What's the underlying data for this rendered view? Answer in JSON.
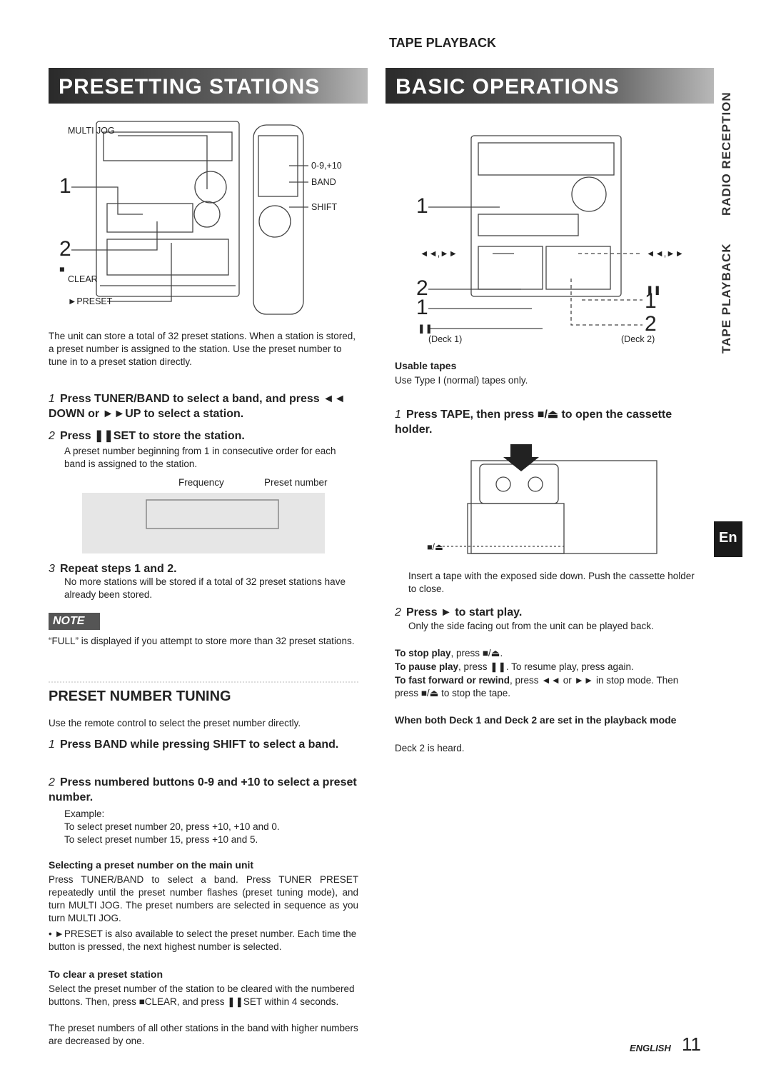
{
  "header": {
    "section": "TAPE PLAYBACK"
  },
  "side_tabs": {
    "radio": "RADIO RECEPTION",
    "tape": "TAPE PLAYBACK",
    "language": "En"
  },
  "left": {
    "banner": "PRESETTING STATIONS",
    "figure_labels": {
      "multi_jog": "MULTI JOG",
      "one": "1",
      "two": "2",
      "stop": "■",
      "clear": "CLEAR",
      "preset": "►PRESET",
      "numbers": "0-9,+10",
      "band": "BAND",
      "shift": "SHIFT"
    },
    "intro": "The unit can store a total of 32 preset stations. When a station is stored, a preset number is assigned to the station. Use the preset number to tune in to a preset station directly.",
    "steps": [
      {
        "number": "1",
        "title": "Press TUNER/BAND to select a band, and press ◄◄ DOWN or ►►UP to select a station."
      },
      {
        "number": "2",
        "title": "Press ❚❚SET to store the station.",
        "text": "A preset number beginning from 1 in consecutive order for each band is assigned to the station."
      },
      {
        "number": "3",
        "title": "Repeat steps 1 and 2.",
        "text": "No more stations will be stored if a total of 32 preset stations have already been stored."
      }
    ],
    "display_labels": {
      "frequency": "Frequency",
      "preset_number": "Preset number"
    },
    "note": {
      "label": "NOTE",
      "text": "“FULL” is displayed if you attempt to store more than 32 preset stations."
    },
    "tuning": {
      "heading": "PRESET NUMBER TUNING",
      "intro": "Use the remote control to select the preset number directly.",
      "steps": [
        {
          "number": "1",
          "title": "Press BAND while pressing SHIFT to select a band."
        },
        {
          "number": "2",
          "title": "Press numbered buttons 0-9 and +10 to select a preset number.",
          "lines": [
            "Example:",
            "To select preset number 20, press +10, +10 and 0.",
            "To select preset number 15, press +10 and 5."
          ]
        }
      ],
      "selecting": {
        "heading": "Selecting a preset number on the main unit",
        "text": "Press TUNER/BAND to select a band. Press TUNER PRESET repeatedly until the preset number flashes (preset tuning mode), and turn MULTI JOG. The preset numbers are selected in sequence as you turn MULTI JOG.",
        "bullet": "• ►PRESET is also available to select the preset number. Each time the button is pressed, the next highest number is selected."
      },
      "clear": {
        "heading": "To clear a preset station",
        "texts": [
          "Select the preset number of the station to be cleared with the numbered buttons. Then, press ■CLEAR, and press ❚❚SET within 4 seconds.",
          "The preset numbers of all other stations in the band with higher numbers are decreased by one."
        ]
      }
    }
  },
  "right": {
    "banner": "BASIC OPERATIONS",
    "figure_labels": {
      "one_top": "1",
      "skip_left": "◄◄,►►",
      "skip_right": "◄◄,►►",
      "two_left": "2",
      "pause_right": "❚❚",
      "one_left": "1",
      "one_right": "1",
      "pause_left": "❚❚",
      "two_right": "2",
      "deck1": "(Deck 1)",
      "deck2": "(Deck 2)"
    },
    "usable": {
      "heading": "Usable tapes",
      "text": "Use Type I (normal) tapes only."
    },
    "steps": [
      {
        "number": "1",
        "title": "Press TAPE, then press ■/⏏ to open the cassette holder.",
        "text": "Insert a tape with the exposed side down. Push the cassette holder to close."
      },
      {
        "number": "2",
        "title": "Press ► to start play.",
        "text": "Only the side facing out from the unit can be played back."
      }
    ],
    "eject_label": "■/⏏",
    "tips": [
      {
        "label": "To stop play",
        "text": ", press ■/⏏."
      },
      {
        "label": "To pause play",
        "text": ", press ❚❚. To resume play, press again."
      },
      {
        "label": "To fast forward or rewind",
        "text": ", press ◄◄ or ►► in stop mode. Then press ■/⏏ to stop the tape."
      }
    ],
    "both": {
      "heading": "When both Deck 1 and Deck 2 are set in the playback mode",
      "text": "Deck 2 is heard."
    }
  },
  "footer": {
    "language": "ENGLISH",
    "page": "11"
  }
}
